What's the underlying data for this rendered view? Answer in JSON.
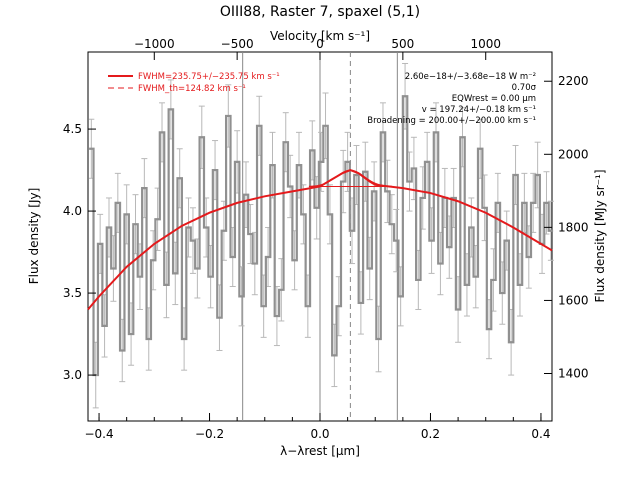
{
  "chart_data": {
    "type": "line",
    "title": "OIII88, Raster 7, spaxel (5,1)",
    "xlabel": "λ−λrest [μm]",
    "ylabel_left": "Flux density [Jy]",
    "ylabel_right": "Flux density [MJy sr⁻¹]",
    "xlabel_top": "Velocity [km s⁻¹]",
    "xlim": [
      -0.42,
      0.42
    ],
    "ylim": [
      2.72,
      4.97
    ],
    "ylim_right": [
      1270,
      2280
    ],
    "xlim_top": [
      -1400,
      1400
    ],
    "x_ticks": [
      -0.4,
      -0.2,
      0.0,
      0.2,
      0.4
    ],
    "x_tick_labels": [
      "−0.4",
      "−0.2",
      "0.0",
      "0.2",
      "0.4"
    ],
    "y_ticks": [
      3.0,
      3.5,
      4.0,
      4.5
    ],
    "y_tick_labels": [
      "3.0",
      "3.5",
      "4.0",
      "4.5"
    ],
    "y_right_ticks": [
      1400,
      1600,
      1800,
      2000,
      2200
    ],
    "y_right_tick_labels": [
      "1400",
      "1600",
      "1800",
      "2000",
      "2200"
    ],
    "x_top_ticks": [
      -1000,
      -500,
      0,
      500,
      1000
    ],
    "x_top_tick_labels": [
      "−1000",
      "−500",
      "0",
      "500",
      "1000"
    ],
    "vertical_lines": [
      -0.14,
      0.0,
      0.14
    ],
    "vertical_dashed_line": 0.055,
    "legend": {
      "position": "top-left",
      "entries": [
        {
          "label": "FWHM=235.75+/−235.75 km s⁻¹",
          "style": "solid",
          "color": "#e41a1c"
        },
        {
          "label": "FWHM_th=124.82 km s⁻¹",
          "style": "dashed",
          "color": "#e41a1c"
        }
      ]
    },
    "annotations": [
      "2.60e−18+/−3.68e−18 W m⁻²",
      "0.70σ",
      "EQWrest = 0.00 μm",
      "v = 197.24+/−0.18 km s⁻¹",
      "Broadening = 200.00+/−200.00 km s⁻¹"
    ],
    "series": [
      {
        "name": "FWHM=235.75+/−235.75 km s⁻¹",
        "kind": "fit",
        "color": "#e41a1c",
        "x": [
          -0.42,
          -0.4,
          -0.35,
          -0.3,
          -0.25,
          -0.2,
          -0.15,
          -0.1,
          -0.05,
          0.0,
          0.02,
          0.04,
          0.055,
          0.07,
          0.09,
          0.1,
          0.15,
          0.2,
          0.25,
          0.3,
          0.35,
          0.4,
          0.42
        ],
        "y": [
          3.4,
          3.48,
          3.66,
          3.8,
          3.91,
          3.99,
          4.05,
          4.09,
          4.12,
          4.15,
          4.19,
          4.23,
          4.25,
          4.23,
          4.18,
          4.16,
          4.14,
          4.11,
          4.06,
          3.99,
          3.9,
          3.8,
          3.76
        ]
      },
      {
        "name": "spectrum",
        "kind": "step",
        "color": "#909090",
        "x": [
          -0.414,
          -0.406,
          -0.398,
          -0.39,
          -0.382,
          -0.374,
          -0.366,
          -0.358,
          -0.35,
          -0.342,
          -0.334,
          -0.326,
          -0.318,
          -0.31,
          -0.302,
          -0.294,
          -0.286,
          -0.278,
          -0.27,
          -0.262,
          -0.254,
          -0.246,
          -0.238,
          -0.23,
          -0.222,
          -0.214,
          -0.206,
          -0.198,
          -0.19,
          -0.182,
          -0.174,
          -0.166,
          -0.158,
          -0.15,
          -0.142,
          -0.134,
          -0.126,
          -0.118,
          -0.11,
          -0.102,
          -0.094,
          -0.086,
          -0.078,
          -0.07,
          -0.062,
          -0.054,
          -0.046,
          -0.038,
          -0.03,
          -0.022,
          -0.014,
          -0.006,
          0.002,
          0.01,
          0.018,
          0.026,
          0.034,
          0.042,
          0.05,
          0.058,
          0.066,
          0.074,
          0.082,
          0.09,
          0.098,
          0.106,
          0.114,
          0.122,
          0.13,
          0.138,
          0.146,
          0.154,
          0.162,
          0.17,
          0.178,
          0.186,
          0.194,
          0.202,
          0.21,
          0.218,
          0.226,
          0.234,
          0.242,
          0.25,
          0.258,
          0.266,
          0.274,
          0.282,
          0.29,
          0.298,
          0.306,
          0.314,
          0.322,
          0.33,
          0.338,
          0.346,
          0.354,
          0.362,
          0.37,
          0.378,
          0.386,
          0.394,
          0.402,
          0.41,
          0.418
        ],
        "y": [
          4.38,
          3.0,
          3.8,
          3.3,
          3.9,
          3.65,
          4.05,
          3.15,
          3.98,
          3.25,
          3.92,
          3.6,
          4.14,
          3.22,
          3.7,
          3.95,
          4.48,
          3.55,
          4.62,
          3.62,
          4.2,
          3.22,
          3.9,
          3.82,
          3.65,
          4.45,
          3.9,
          3.6,
          4.25,
          3.35,
          3.88,
          4.58,
          3.72,
          4.3,
          3.48,
          4.1,
          3.86,
          3.68,
          4.52,
          3.42,
          3.72,
          4.28,
          3.36,
          3.52,
          4.42,
          4.15,
          3.7,
          4.28,
          3.98,
          3.42,
          4.37,
          4.02,
          4.3,
          4.52,
          3.98,
          3.12,
          3.42,
          4.18,
          4.3,
          3.88,
          4.22,
          3.44,
          4.24,
          3.65,
          4.12,
          3.22,
          4.48,
          4.12,
          3.92,
          3.82,
          3.48,
          4.7,
          4.18,
          4.26,
          3.58,
          4.08,
          4.3,
          3.82,
          4.48,
          3.68,
          4.08,
          3.78,
          4.08,
          3.4,
          4.45,
          3.55,
          3.9,
          3.6,
          4.38,
          4.02,
          3.28,
          3.58,
          4.05,
          3.5,
          3.82,
          3.2,
          4.22,
          3.55,
          4.05,
          3.72,
          4.05,
          4.22,
          3.8,
          4.05,
          3.88
        ],
        "error": [
          0.18,
          0.2,
          0.18,
          0.19,
          0.18,
          0.2,
          0.18,
          0.19,
          0.18,
          0.19,
          0.18,
          0.2,
          0.18,
          0.19,
          0.18,
          0.19,
          0.18,
          0.2,
          0.18,
          0.19,
          0.18,
          0.19,
          0.18,
          0.2,
          0.18,
          0.19,
          0.18,
          0.19,
          0.18,
          0.2,
          0.18,
          0.19,
          0.18,
          0.19,
          0.18,
          0.2,
          0.18,
          0.19,
          0.18,
          0.19,
          0.18,
          0.2,
          0.18,
          0.19,
          0.18,
          0.19,
          0.18,
          0.2,
          0.18,
          0.19,
          0.18,
          0.19,
          0.18,
          0.2,
          0.18,
          0.19,
          0.18,
          0.19,
          0.18,
          0.2,
          0.18,
          0.19,
          0.18,
          0.19,
          0.18,
          0.2,
          0.18,
          0.19,
          0.18,
          0.19,
          0.18,
          0.2,
          0.18,
          0.19,
          0.18,
          0.19,
          0.18,
          0.2,
          0.18,
          0.19,
          0.18,
          0.19,
          0.18,
          0.2,
          0.18,
          0.19,
          0.18,
          0.19,
          0.18,
          0.2,
          0.18,
          0.19,
          0.18,
          0.19,
          0.18,
          0.2,
          0.18,
          0.19,
          0.18,
          0.19,
          0.18,
          0.2,
          0.18,
          0.19,
          0.18
        ]
      },
      {
        "name": "line component",
        "kind": "gaussian",
        "color": "#e41a1c",
        "center": 0.055,
        "base": 4.15,
        "peak": 4.25,
        "x_range": [
          -0.02,
          0.13
        ]
      }
    ]
  }
}
